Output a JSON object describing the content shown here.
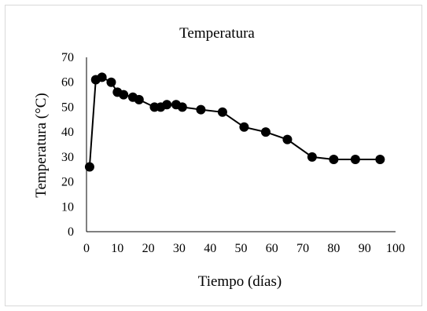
{
  "chart_data": {
    "type": "line",
    "title": "Temperatura",
    "xlabel": "Tiempo (días)",
    "ylabel": "Temperatura (°C)",
    "xlim": [
      0,
      100
    ],
    "ylim": [
      0,
      70
    ],
    "x_ticks": [
      "0",
      "10",
      "20",
      "30",
      "40",
      "50",
      "60",
      "70",
      "80",
      "90",
      "100"
    ],
    "y_ticks": [
      "0",
      "10",
      "20",
      "30",
      "40",
      "50",
      "60",
      "70"
    ],
    "grid": false,
    "legend": "none",
    "series": [
      {
        "color": "#000000",
        "marker": "circle",
        "x": [
          1,
          3,
          5,
          8,
          10,
          12,
          15,
          17,
          22,
          24,
          26,
          29,
          31,
          37,
          44,
          51,
          58,
          65,
          73,
          80,
          87,
          95
        ],
        "y": [
          26,
          61,
          62,
          60,
          56,
          55,
          54,
          53,
          50,
          50,
          51,
          51,
          50,
          49,
          48,
          42,
          40,
          37,
          30,
          29,
          29,
          29
        ]
      }
    ]
  }
}
